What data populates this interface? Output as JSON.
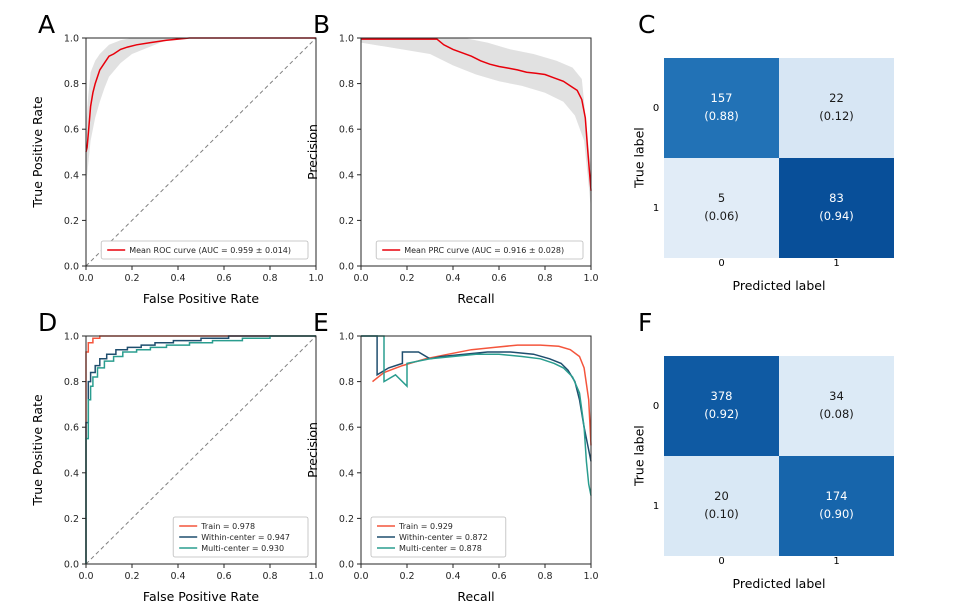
{
  "figure": {
    "background": "#ffffff"
  },
  "chart_data": [
    {
      "id": "A",
      "panel_label": "A",
      "type": "line",
      "xlabel": "False Positive Rate",
      "ylabel": "True Positive Rate",
      "xlim": [
        0,
        1
      ],
      "ylim": [
        0,
        1
      ],
      "xticks": [
        "0.0",
        "0.2",
        "0.4",
        "0.6",
        "0.8",
        "1.0"
      ],
      "yticks": [
        "0.0",
        "0.2",
        "0.4",
        "0.6",
        "0.8",
        "1.0"
      ],
      "diagonal": true,
      "band": {
        "color": "#c9c9c9",
        "opacity": 0.55,
        "lower": [
          [
            0,
            0.35
          ],
          [
            0.01,
            0.45
          ],
          [
            0.02,
            0.55
          ],
          [
            0.04,
            0.65
          ],
          [
            0.06,
            0.72
          ],
          [
            0.08,
            0.78
          ],
          [
            0.1,
            0.83
          ],
          [
            0.15,
            0.89
          ],
          [
            0.2,
            0.93
          ],
          [
            0.25,
            0.95
          ],
          [
            0.3,
            0.97
          ],
          [
            0.35,
            0.99
          ],
          [
            0.4,
            1.0
          ],
          [
            1,
            1
          ]
        ],
        "upper": [
          [
            0,
            0.62
          ],
          [
            0.01,
            0.75
          ],
          [
            0.02,
            0.85
          ],
          [
            0.04,
            0.9
          ],
          [
            0.06,
            0.93
          ],
          [
            0.08,
            0.95
          ],
          [
            0.1,
            0.97
          ],
          [
            0.15,
            0.99
          ],
          [
            0.2,
            1.0
          ],
          [
            1,
            1
          ]
        ]
      },
      "series": [
        {
          "name": "Mean ROC curve (AUC = 0.959 ± 0.014)",
          "color": "#e8000b",
          "points": [
            [
              0,
              0.5
            ],
            [
              0.005,
              0.52
            ],
            [
              0.01,
              0.58
            ],
            [
              0.02,
              0.7
            ],
            [
              0.03,
              0.76
            ],
            [
              0.04,
              0.8
            ],
            [
              0.05,
              0.83
            ],
            [
              0.06,
              0.86
            ],
            [
              0.08,
              0.89
            ],
            [
              0.1,
              0.92
            ],
            [
              0.12,
              0.93
            ],
            [
              0.15,
              0.95
            ],
            [
              0.18,
              0.96
            ],
            [
              0.22,
              0.97
            ],
            [
              0.28,
              0.98
            ],
            [
              0.35,
              0.99
            ],
            [
              0.45,
              1.0
            ],
            [
              1,
              1
            ]
          ]
        }
      ],
      "legend": {
        "position": "bottom-right"
      }
    },
    {
      "id": "B",
      "panel_label": "B",
      "type": "line",
      "xlabel": "Recall",
      "ylabel": "Precision",
      "xlim": [
        0,
        1
      ],
      "ylim": [
        0,
        1
      ],
      "xticks": [
        "0.0",
        "0.2",
        "0.4",
        "0.6",
        "0.8",
        "1.0"
      ],
      "yticks": [
        "0.0",
        "0.2",
        "0.4",
        "0.6",
        "0.8",
        "1.0"
      ],
      "diagonal": false,
      "band": {
        "color": "#c9c9c9",
        "opacity": 0.55,
        "lower": [
          [
            0,
            0.98
          ],
          [
            0.3,
            0.93
          ],
          [
            0.4,
            0.88
          ],
          [
            0.5,
            0.84
          ],
          [
            0.6,
            0.81
          ],
          [
            0.7,
            0.79
          ],
          [
            0.8,
            0.76
          ],
          [
            0.88,
            0.72
          ],
          [
            0.93,
            0.66
          ],
          [
            0.97,
            0.55
          ],
          [
            1,
            0.25
          ]
        ],
        "upper": [
          [
            0,
            1.0
          ],
          [
            0.45,
            1.0
          ],
          [
            0.55,
            0.98
          ],
          [
            0.65,
            0.95
          ],
          [
            0.75,
            0.93
          ],
          [
            0.85,
            0.9
          ],
          [
            0.92,
            0.87
          ],
          [
            0.96,
            0.82
          ],
          [
            1,
            0.42
          ]
        ]
      },
      "series": [
        {
          "name": "Mean PRC curve (AUC = 0.916 ± 0.028)",
          "color": "#e8000b",
          "points": [
            [
              0,
              0.995
            ],
            [
              0.33,
              0.995
            ],
            [
              0.36,
              0.97
            ],
            [
              0.4,
              0.95
            ],
            [
              0.44,
              0.935
            ],
            [
              0.48,
              0.92
            ],
            [
              0.52,
              0.9
            ],
            [
              0.56,
              0.885
            ],
            [
              0.6,
              0.875
            ],
            [
              0.64,
              0.868
            ],
            [
              0.68,
              0.86
            ],
            [
              0.72,
              0.85
            ],
            [
              0.76,
              0.845
            ],
            [
              0.8,
              0.84
            ],
            [
              0.84,
              0.825
            ],
            [
              0.88,
              0.81
            ],
            [
              0.91,
              0.79
            ],
            [
              0.94,
              0.77
            ],
            [
              0.96,
              0.73
            ],
            [
              0.975,
              0.65
            ],
            [
              0.985,
              0.52
            ],
            [
              1,
              0.33
            ]
          ]
        }
      ],
      "legend": {
        "position": "bottom-right"
      }
    },
    {
      "id": "C",
      "panel_label": "C",
      "type": "heatmap",
      "xlabel": "Predicted label",
      "ylabel": "True label",
      "row_labels": [
        "0",
        "1"
      ],
      "col_labels": [
        "0",
        "1"
      ],
      "cells": [
        [
          {
            "value": "157",
            "ratio": "(0.88)",
            "bg": "#2272b6",
            "fg": "#ffffff"
          },
          {
            "value": "22",
            "ratio": "(0.12)",
            "bg": "#d7e6f4",
            "fg": "#1a1a1a"
          }
        ],
        [
          {
            "value": "5",
            "ratio": "(0.06)",
            "bg": "#e1ecf7",
            "fg": "#1a1a1a"
          },
          {
            "value": "83",
            "ratio": "(0.94)",
            "bg": "#084f99",
            "fg": "#ffffff"
          }
        ]
      ]
    },
    {
      "id": "D",
      "panel_label": "D",
      "type": "line",
      "xlabel": "False Positive Rate",
      "ylabel": "True Positive Rate",
      "xlim": [
        0,
        1
      ],
      "ylim": [
        0,
        1
      ],
      "xticks": [
        "0.0",
        "0.2",
        "0.4",
        "0.6",
        "0.8",
        "1.0"
      ],
      "yticks": [
        "0.0",
        "0.2",
        "0.4",
        "0.6",
        "0.8",
        "1.0"
      ],
      "diagonal": true,
      "series": [
        {
          "name": "Train = 0.978",
          "color": "#f4553c",
          "points": [
            [
              0,
              0
            ],
            [
              0,
              0.93
            ],
            [
              0.01,
              0.93
            ],
            [
              0.01,
              0.97
            ],
            [
              0.03,
              0.97
            ],
            [
              0.03,
              0.99
            ],
            [
              0.06,
              0.99
            ],
            [
              0.06,
              1.0
            ],
            [
              1,
              1
            ]
          ]
        },
        {
          "name": "Within-center = 0.947",
          "color": "#1f4e6e",
          "points": [
            [
              0,
              0
            ],
            [
              0,
              0.62
            ],
            [
              0.01,
              0.62
            ],
            [
              0.01,
              0.8
            ],
            [
              0.02,
              0.8
            ],
            [
              0.02,
              0.84
            ],
            [
              0.04,
              0.84
            ],
            [
              0.04,
              0.87
            ],
            [
              0.06,
              0.87
            ],
            [
              0.06,
              0.9
            ],
            [
              0.09,
              0.9
            ],
            [
              0.09,
              0.92
            ],
            [
              0.13,
              0.92
            ],
            [
              0.13,
              0.94
            ],
            [
              0.18,
              0.94
            ],
            [
              0.18,
              0.95
            ],
            [
              0.24,
              0.95
            ],
            [
              0.24,
              0.96
            ],
            [
              0.3,
              0.96
            ],
            [
              0.3,
              0.97
            ],
            [
              0.38,
              0.97
            ],
            [
              0.38,
              0.98
            ],
            [
              0.5,
              0.98
            ],
            [
              0.5,
              0.99
            ],
            [
              0.62,
              0.99
            ],
            [
              0.62,
              1.0
            ],
            [
              1,
              1
            ]
          ]
        },
        {
          "name": "Multi-center = 0.930",
          "color": "#2a9d8f",
          "points": [
            [
              0,
              0
            ],
            [
              0,
              0.55
            ],
            [
              0.01,
              0.55
            ],
            [
              0.01,
              0.72
            ],
            [
              0.02,
              0.72
            ],
            [
              0.02,
              0.78
            ],
            [
              0.03,
              0.78
            ],
            [
              0.03,
              0.82
            ],
            [
              0.05,
              0.82
            ],
            [
              0.05,
              0.86
            ],
            [
              0.08,
              0.86
            ],
            [
              0.08,
              0.89
            ],
            [
              0.12,
              0.89
            ],
            [
              0.12,
              0.91
            ],
            [
              0.16,
              0.91
            ],
            [
              0.16,
              0.93
            ],
            [
              0.22,
              0.93
            ],
            [
              0.22,
              0.94
            ],
            [
              0.28,
              0.94
            ],
            [
              0.28,
              0.95
            ],
            [
              0.35,
              0.95
            ],
            [
              0.35,
              0.96
            ],
            [
              0.45,
              0.96
            ],
            [
              0.45,
              0.97
            ],
            [
              0.55,
              0.97
            ],
            [
              0.55,
              0.98
            ],
            [
              0.68,
              0.98
            ],
            [
              0.68,
              0.99
            ],
            [
              0.8,
              0.99
            ],
            [
              0.8,
              1.0
            ],
            [
              1,
              1
            ]
          ]
        }
      ],
      "legend": {
        "position": "bottom-right"
      }
    },
    {
      "id": "E",
      "panel_label": "E",
      "type": "line",
      "xlabel": "Recall",
      "ylabel": "Precision",
      "xlim": [
        0,
        1
      ],
      "ylim": [
        0,
        1
      ],
      "xticks": [
        "0.0",
        "0.2",
        "0.4",
        "0.6",
        "0.8",
        "1.0"
      ],
      "yticks": [
        "0.0",
        "0.2",
        "0.4",
        "0.6",
        "0.8",
        "1.0"
      ],
      "diagonal": false,
      "series": [
        {
          "name": "Train = 0.929",
          "color": "#f4553c",
          "points": [
            [
              0.05,
              0.8
            ],
            [
              0.1,
              0.84
            ],
            [
              0.18,
              0.87
            ],
            [
              0.28,
              0.9
            ],
            [
              0.38,
              0.92
            ],
            [
              0.48,
              0.94
            ],
            [
              0.58,
              0.95
            ],
            [
              0.68,
              0.96
            ],
            [
              0.78,
              0.96
            ],
            [
              0.86,
              0.955
            ],
            [
              0.91,
              0.94
            ],
            [
              0.95,
              0.91
            ],
            [
              0.97,
              0.86
            ],
            [
              0.99,
              0.72
            ],
            [
              1,
              0.52
            ]
          ]
        },
        {
          "name": "Within-center = 0.872",
          "color": "#1f4e6e",
          "points": [
            [
              0,
              1
            ],
            [
              0.07,
              1
            ],
            [
              0.07,
              0.83
            ],
            [
              0.12,
              0.86
            ],
            [
              0.18,
              0.88
            ],
            [
              0.18,
              0.93
            ],
            [
              0.25,
              0.93
            ],
            [
              0.3,
              0.9
            ],
            [
              0.35,
              0.91
            ],
            [
              0.45,
              0.92
            ],
            [
              0.55,
              0.93
            ],
            [
              0.65,
              0.93
            ],
            [
              0.75,
              0.92
            ],
            [
              0.82,
              0.9
            ],
            [
              0.87,
              0.88
            ],
            [
              0.9,
              0.85
            ],
            [
              0.93,
              0.8
            ],
            [
              0.95,
              0.72
            ],
            [
              0.97,
              0.6
            ],
            [
              0.99,
              0.5
            ],
            [
              1,
              0.45
            ]
          ]
        },
        {
          "name": "Multi-center = 0.878",
          "color": "#2a9d8f",
          "points": [
            [
              0,
              1
            ],
            [
              0.1,
              1
            ],
            [
              0.1,
              0.8
            ],
            [
              0.15,
              0.83
            ],
            [
              0.2,
              0.78
            ],
            [
              0.2,
              0.88
            ],
            [
              0.3,
              0.9
            ],
            [
              0.4,
              0.91
            ],
            [
              0.5,
              0.92
            ],
            [
              0.6,
              0.92
            ],
            [
              0.7,
              0.91
            ],
            [
              0.78,
              0.9
            ],
            [
              0.84,
              0.88
            ],
            [
              0.88,
              0.86
            ],
            [
              0.92,
              0.82
            ],
            [
              0.95,
              0.75
            ],
            [
              0.97,
              0.6
            ],
            [
              0.98,
              0.45
            ],
            [
              0.99,
              0.35
            ],
            [
              1,
              0.3
            ]
          ]
        }
      ],
      "legend": {
        "position": "bottom-left"
      }
    },
    {
      "id": "F",
      "panel_label": "F",
      "type": "heatmap",
      "xlabel": "Predicted label",
      "ylabel": "True label",
      "row_labels": [
        "0",
        "1"
      ],
      "col_labels": [
        "0",
        "1"
      ],
      "cells": [
        [
          {
            "value": "378",
            "ratio": "(0.92)",
            "bg": "#0f5aa3",
            "fg": "#ffffff"
          },
          {
            "value": "34",
            "ratio": "(0.08)",
            "bg": "#dceaf6",
            "fg": "#1a1a1a"
          }
        ],
        [
          {
            "value": "20",
            "ratio": "(0.10)",
            "bg": "#d9e8f5",
            "fg": "#1a1a1a"
          },
          {
            "value": "174",
            "ratio": "(0.90)",
            "bg": "#1765ab",
            "fg": "#ffffff"
          }
        ]
      ]
    }
  ]
}
